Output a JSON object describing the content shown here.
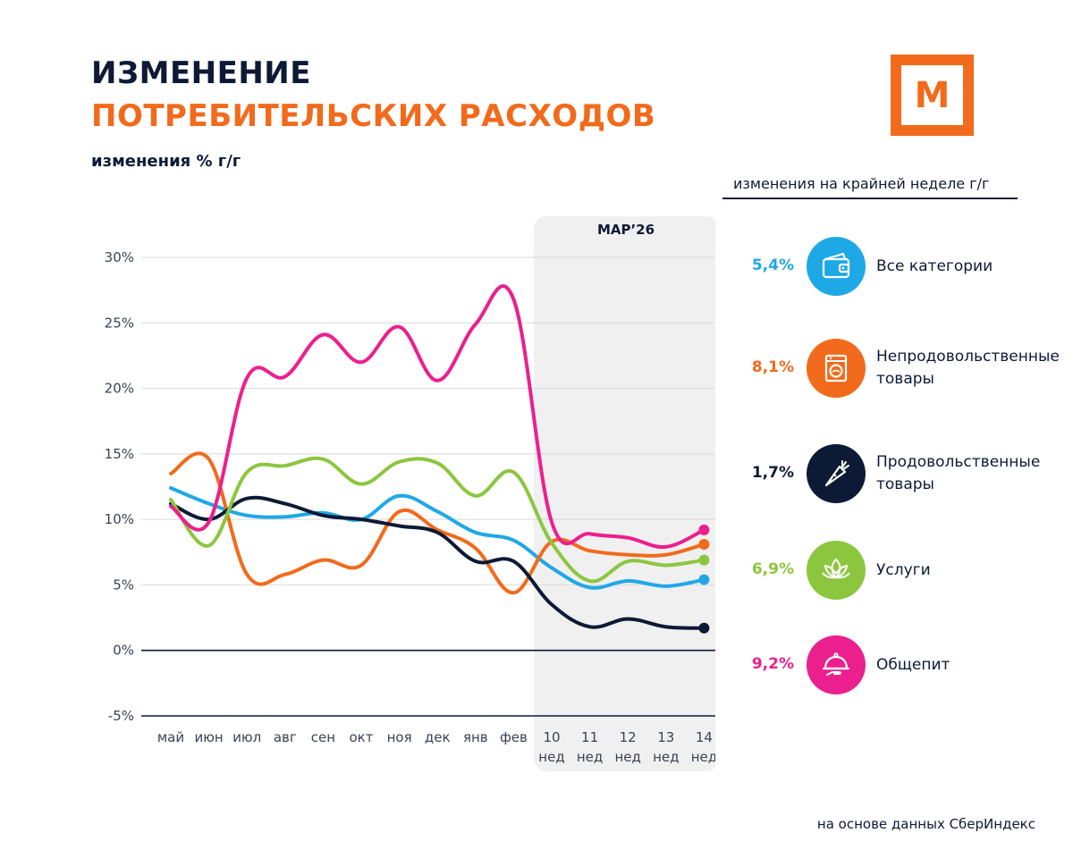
{
  "header": {
    "title_line1": "ИЗМЕНЕНИЕ",
    "title_line2": "ПОТРЕБИТЕЛЬСКИХ РАСХОДОВ",
    "subtitle": "изменения % г/г",
    "logo_letter": "М"
  },
  "legend": {
    "title": "изменения на крайней неделе г/г",
    "items": [
      {
        "value": "5,4%",
        "label": "Все категории",
        "color": "#1fa8e6",
        "icon": "wallet-icon"
      },
      {
        "value": "8,1%",
        "label": "Непродовольственные товары",
        "color": "#f26a1b",
        "icon": "washing-machine-icon"
      },
      {
        "value": "1,7%",
        "label": "Продовольственные товары",
        "color": "#0d1a36",
        "icon": "carrot-icon"
      },
      {
        "value": "6,9%",
        "label": "Услуги",
        "color": "#8cc63f",
        "icon": "lotus-icon"
      },
      {
        "value": "9,2%",
        "label": "Общепит",
        "color": "#ec1f8e",
        "icon": "cloche-icon"
      }
    ]
  },
  "source": "на основе данных СберИндекс",
  "colors": {
    "navy": "#0d1a36",
    "orange": "#f26a1b",
    "blue": "#1fa8e6",
    "green": "#8cc63f",
    "pink": "#ec1f8e",
    "highlight_band": "#f0f0f0"
  },
  "chart_data": {
    "type": "line",
    "highlight_label": "МАР’26",
    "highlight_range": [
      10,
      14
    ],
    "categories": [
      [
        "май"
      ],
      [
        "июн"
      ],
      [
        "июл"
      ],
      [
        "авг"
      ],
      [
        "сен"
      ],
      [
        "окт"
      ],
      [
        "ноя"
      ],
      [
        "дек"
      ],
      [
        "янв"
      ],
      [
        "фев"
      ],
      [
        "10",
        "нед"
      ],
      [
        "11",
        "нед"
      ],
      [
        "12",
        "нед"
      ],
      [
        "13",
        "нед"
      ],
      [
        "14",
        "нед"
      ]
    ],
    "ylim": [
      -5,
      30
    ],
    "yticks": [
      {
        "value": 30,
        "label": "30%"
      },
      {
        "value": 25,
        "label": "25%"
      },
      {
        "value": 20,
        "label": "20%"
      },
      {
        "value": 15,
        "label": "15%"
      },
      {
        "value": 10,
        "label": "10%"
      },
      {
        "value": 5,
        "label": "5%"
      },
      {
        "value": 0,
        "label": "0%"
      },
      {
        "value": -5,
        "label": "-5%"
      }
    ],
    "grid": true,
    "series": [
      {
        "name": "Все категории",
        "color": "#1fa8e6",
        "values": [
          12.4,
          11.2,
          10.3,
          10.2,
          10.5,
          10.0,
          11.8,
          10.6,
          9.0,
          8.4,
          6.3,
          4.8,
          5.3,
          4.9,
          5.4
        ]
      },
      {
        "name": "Непродовольственные товары",
        "color": "#f26a1b",
        "values": [
          13.5,
          14.6,
          5.8,
          5.8,
          6.9,
          6.5,
          10.6,
          9.2,
          7.8,
          4.4,
          8.3,
          7.6,
          7.3,
          7.3,
          8.1
        ]
      },
      {
        "name": "Продовольственные товары",
        "color": "#0d1a36",
        "values": [
          11.2,
          10.0,
          11.6,
          11.2,
          10.3,
          10.0,
          9.5,
          9.0,
          6.8,
          6.8,
          3.5,
          1.8,
          2.4,
          1.8,
          1.7
        ]
      },
      {
        "name": "Услуги",
        "color": "#8cc63f",
        "values": [
          11.5,
          8.0,
          13.6,
          14.1,
          14.6,
          12.7,
          14.4,
          14.3,
          11.8,
          13.6,
          8.2,
          5.3,
          6.8,
          6.5,
          6.9
        ]
      },
      {
        "name": "Общепит",
        "color": "#ec1f8e",
        "values": [
          11.0,
          9.8,
          20.8,
          20.9,
          24.1,
          22.0,
          24.7,
          20.6,
          24.9,
          26.8,
          9.8,
          8.9,
          8.6,
          7.9,
          9.2
        ]
      }
    ]
  }
}
